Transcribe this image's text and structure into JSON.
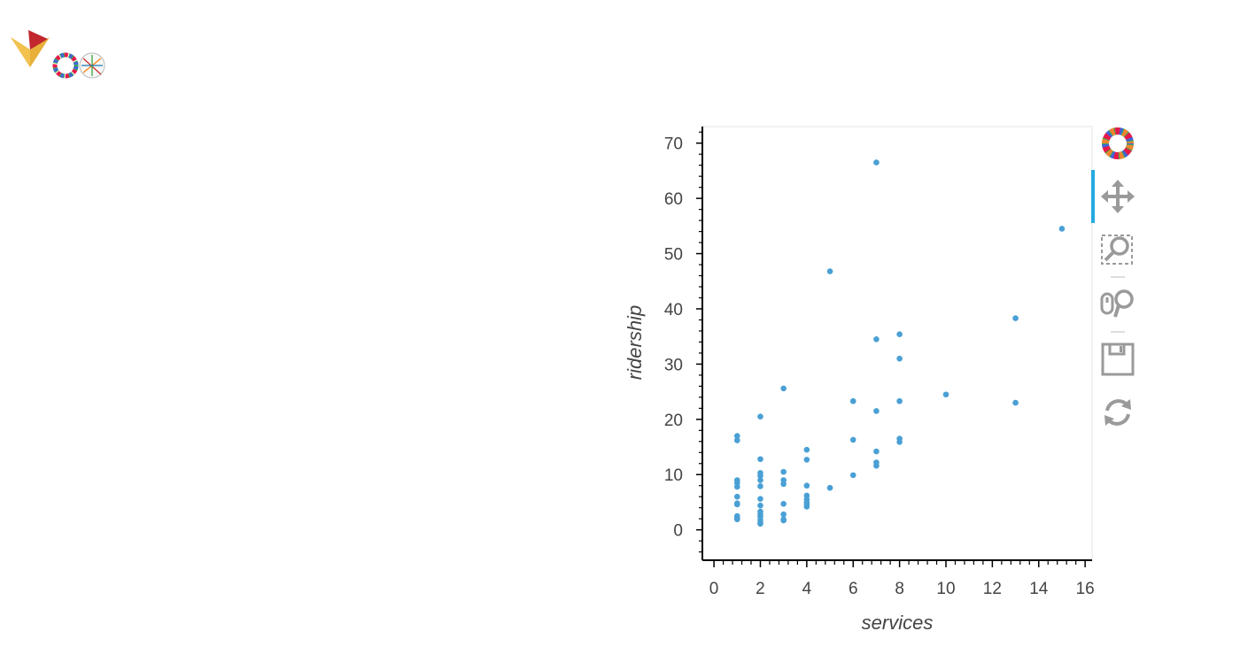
{
  "header": {
    "logos": [
      "holoviz-logo-icon",
      "bokeh-hexagon-icon",
      "matplotlib-icon"
    ]
  },
  "chart_data": {
    "type": "scatter",
    "title": "",
    "xlabel": "services",
    "ylabel": "ridership",
    "xlim": [
      -0.5,
      16.3
    ],
    "ylim": [
      -5.5,
      73
    ],
    "x_ticks": [
      0,
      2,
      4,
      6,
      8,
      10,
      12,
      14,
      16
    ],
    "y_ticks": [
      0,
      10,
      20,
      30,
      40,
      50,
      60,
      70
    ],
    "grid": false,
    "point_color": "#4aa0d5",
    "x": [
      1,
      1,
      1,
      1,
      1,
      1,
      1,
      1,
      1,
      1,
      1,
      1,
      2,
      2,
      2,
      2,
      2,
      2,
      2,
      2,
      2,
      2,
      2,
      2,
      2,
      2,
      3,
      3,
      3,
      3,
      3,
      3,
      3,
      3,
      4,
      4,
      4,
      4,
      4,
      4,
      4,
      4,
      5,
      5,
      6,
      6,
      6,
      7,
      7,
      7,
      7,
      7,
      7,
      8,
      8,
      8,
      8,
      8,
      10,
      13,
      13,
      15
    ],
    "y": [
      17,
      16.2,
      9,
      8.5,
      7.8,
      6,
      4.8,
      4.6,
      2.5,
      2.2,
      2,
      1.9,
      20.5,
      12.8,
      10.3,
      9.8,
      9,
      7.9,
      5.6,
      4.4,
      3.3,
      2.8,
      2.4,
      1.8,
      1.3,
      1.1,
      25.6,
      10.5,
      9,
      8.3,
      4.7,
      2.8,
      1.9,
      1.7,
      14.5,
      12.7,
      8,
      6.2,
      5.5,
      5,
      4.6,
      4.2,
      46.8,
      7.6,
      23.3,
      16.3,
      9.9,
      66.5,
      34.5,
      21.5,
      14.2,
      12.2,
      11.6,
      35.4,
      31,
      23.3,
      16.5,
      15.9,
      24.5,
      38.3,
      23,
      54.5
    ]
  },
  "toolbar": {
    "tools": [
      "bokeh-logo-icon",
      "pan-tool-icon",
      "box-zoom-tool-icon",
      "wheel-zoom-tool-icon",
      "save-tool-icon",
      "reset-tool-icon"
    ],
    "active_color": "#26aae1"
  }
}
